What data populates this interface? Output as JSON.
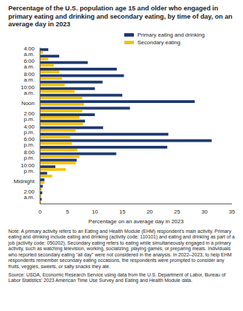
{
  "chart_data": {
    "type": "bar",
    "orientation": "horizontal",
    "title": "Percentage of the U.S. population age 15 and older who engaged  in primary eating and drinking and secondary eating, by time of day, on an average day in 2023",
    "x_label": "Percentage on an average day in 2023",
    "categories": [
      "4:00 a.m.",
      null,
      "6:00 a.m.",
      null,
      "8:00 a.m.",
      null,
      "10:00 a.m.",
      null,
      "Noon",
      null,
      "2:00 p.m.",
      null,
      "4:00 p.m.",
      null,
      "6:00 p.m.",
      null,
      "8:00 p.m.",
      null,
      "10:00 p.m.",
      null,
      "Midnight",
      null,
      "2:00 a.m.",
      null
    ],
    "series": [
      {
        "name": "Primary eating and drinking",
        "color": "#1f3a70",
        "values": [
          1.5,
          3.5,
          8.7,
          14,
          15.3,
          11.4,
          10,
          15,
          28.2,
          16.4,
          10,
          8.2,
          11.5,
          23.4,
          31.3,
          23.2,
          13.9,
          6.7,
          2.8,
          1.3,
          0.8,
          0.5,
          0.4,
          0.3
        ]
      },
      {
        "name": "Secondary eating",
        "color": "#f4c20d",
        "values": [
          0.5,
          1.5,
          2.5,
          3.5,
          4,
          4.5,
          6.3,
          7.7,
          8,
          7.7,
          7.2,
          7.8,
          6.5,
          5.5,
          5.8,
          6.8,
          7.2,
          6.5,
          4.7,
          2.2,
          0.8,
          0.3,
          0.2,
          0.2
        ]
      }
    ],
    "xlim": [
      0,
      35
    ],
    "xticks": [
      0,
      5,
      10,
      15,
      20,
      25,
      30,
      35
    ],
    "grid": false,
    "legend": "top",
    "note": "Note: A primary activity refers to an Eating and Health Module (EHM) respondent's main activity. Primary eating and drinking include eating and drinking (activity code: 110101) and eating and drinking as part of a job (activity code: 050202). Secondary eating refers to eating while simultaneously engaged in a primary activity, such as watching television, working, socializing, playing games, or preparing meals. Individuals who reported secondary eating \"all day\" were not considered in the analysis. In 2022–2023, to help EHM respondents remember secondary eating occasions, the respondents were prompted to consider any fruits, veggies, sweets, or salty snacks they ate.",
    "source": "Source: USDA, Economic Research Service using data from the U.S. Department of Labor, Bureau of Labor Statistics' 2023 American Time Use Survey and Eating and Health Module data."
  }
}
